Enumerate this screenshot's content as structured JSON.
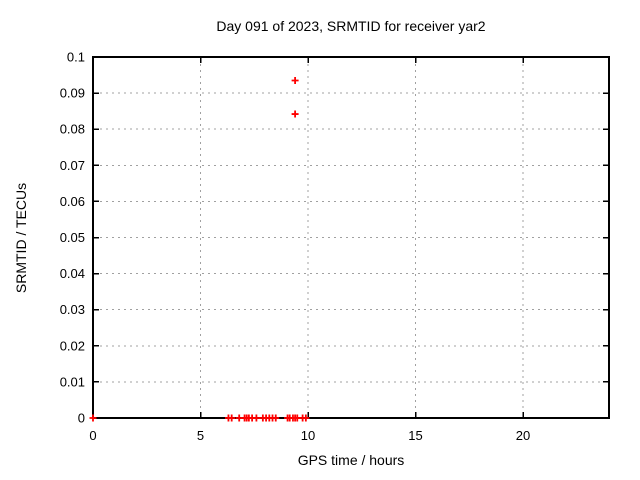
{
  "chart_data": {
    "type": "scatter",
    "title": "Day 091 of 2023, SRMTID for receiver yar2",
    "xlabel": "GPS time / hours",
    "ylabel": "SRMTID / TECUs",
    "xlim": [
      0,
      24
    ],
    "ylim": [
      0,
      0.1
    ],
    "xticks": [
      {
        "v": 0,
        "label": "0"
      },
      {
        "v": 5,
        "label": "5"
      },
      {
        "v": 10,
        "label": "10"
      },
      {
        "v": 15,
        "label": "15"
      },
      {
        "v": 20,
        "label": "20"
      }
    ],
    "yticks": [
      {
        "v": 0,
        "label": "0"
      },
      {
        "v": 0.01,
        "label": "0.01"
      },
      {
        "v": 0.02,
        "label": "0.02"
      },
      {
        "v": 0.03,
        "label": "0.03"
      },
      {
        "v": 0.04,
        "label": "0.04"
      },
      {
        "v": 0.05,
        "label": "0.05"
      },
      {
        "v": 0.06,
        "label": "0.06"
      },
      {
        "v": 0.07,
        "label": "0.07"
      },
      {
        "v": 0.08,
        "label": "0.08"
      },
      {
        "v": 0.09,
        "label": "0.09"
      },
      {
        "v": 0.1,
        "label": "0.1"
      }
    ],
    "grid": true,
    "legend": "none",
    "series": [
      {
        "name": "SRMTID",
        "marker": "plus",
        "color": "#ff0000",
        "points": [
          [
            0.0,
            0
          ],
          [
            6.3,
            0
          ],
          [
            6.45,
            0
          ],
          [
            6.8,
            0
          ],
          [
            7.05,
            0
          ],
          [
            7.15,
            0
          ],
          [
            7.25,
            0
          ],
          [
            7.4,
            0
          ],
          [
            7.6,
            0
          ],
          [
            7.9,
            0
          ],
          [
            8.05,
            0
          ],
          [
            8.2,
            0
          ],
          [
            8.35,
            0
          ],
          [
            8.5,
            0
          ],
          [
            9.05,
            0
          ],
          [
            9.15,
            0
          ],
          [
            9.3,
            0
          ],
          [
            9.4,
            0
          ],
          [
            9.5,
            0
          ],
          [
            9.75,
            0
          ],
          [
            9.9,
            0
          ],
          [
            9.4,
            0.0842
          ],
          [
            9.4,
            0.0935
          ]
        ]
      }
    ]
  },
  "colors": {
    "marker": "#ff0000",
    "grid": "#a0a0a0",
    "border": "#000000",
    "text": "#000000",
    "background": "#ffffff"
  }
}
